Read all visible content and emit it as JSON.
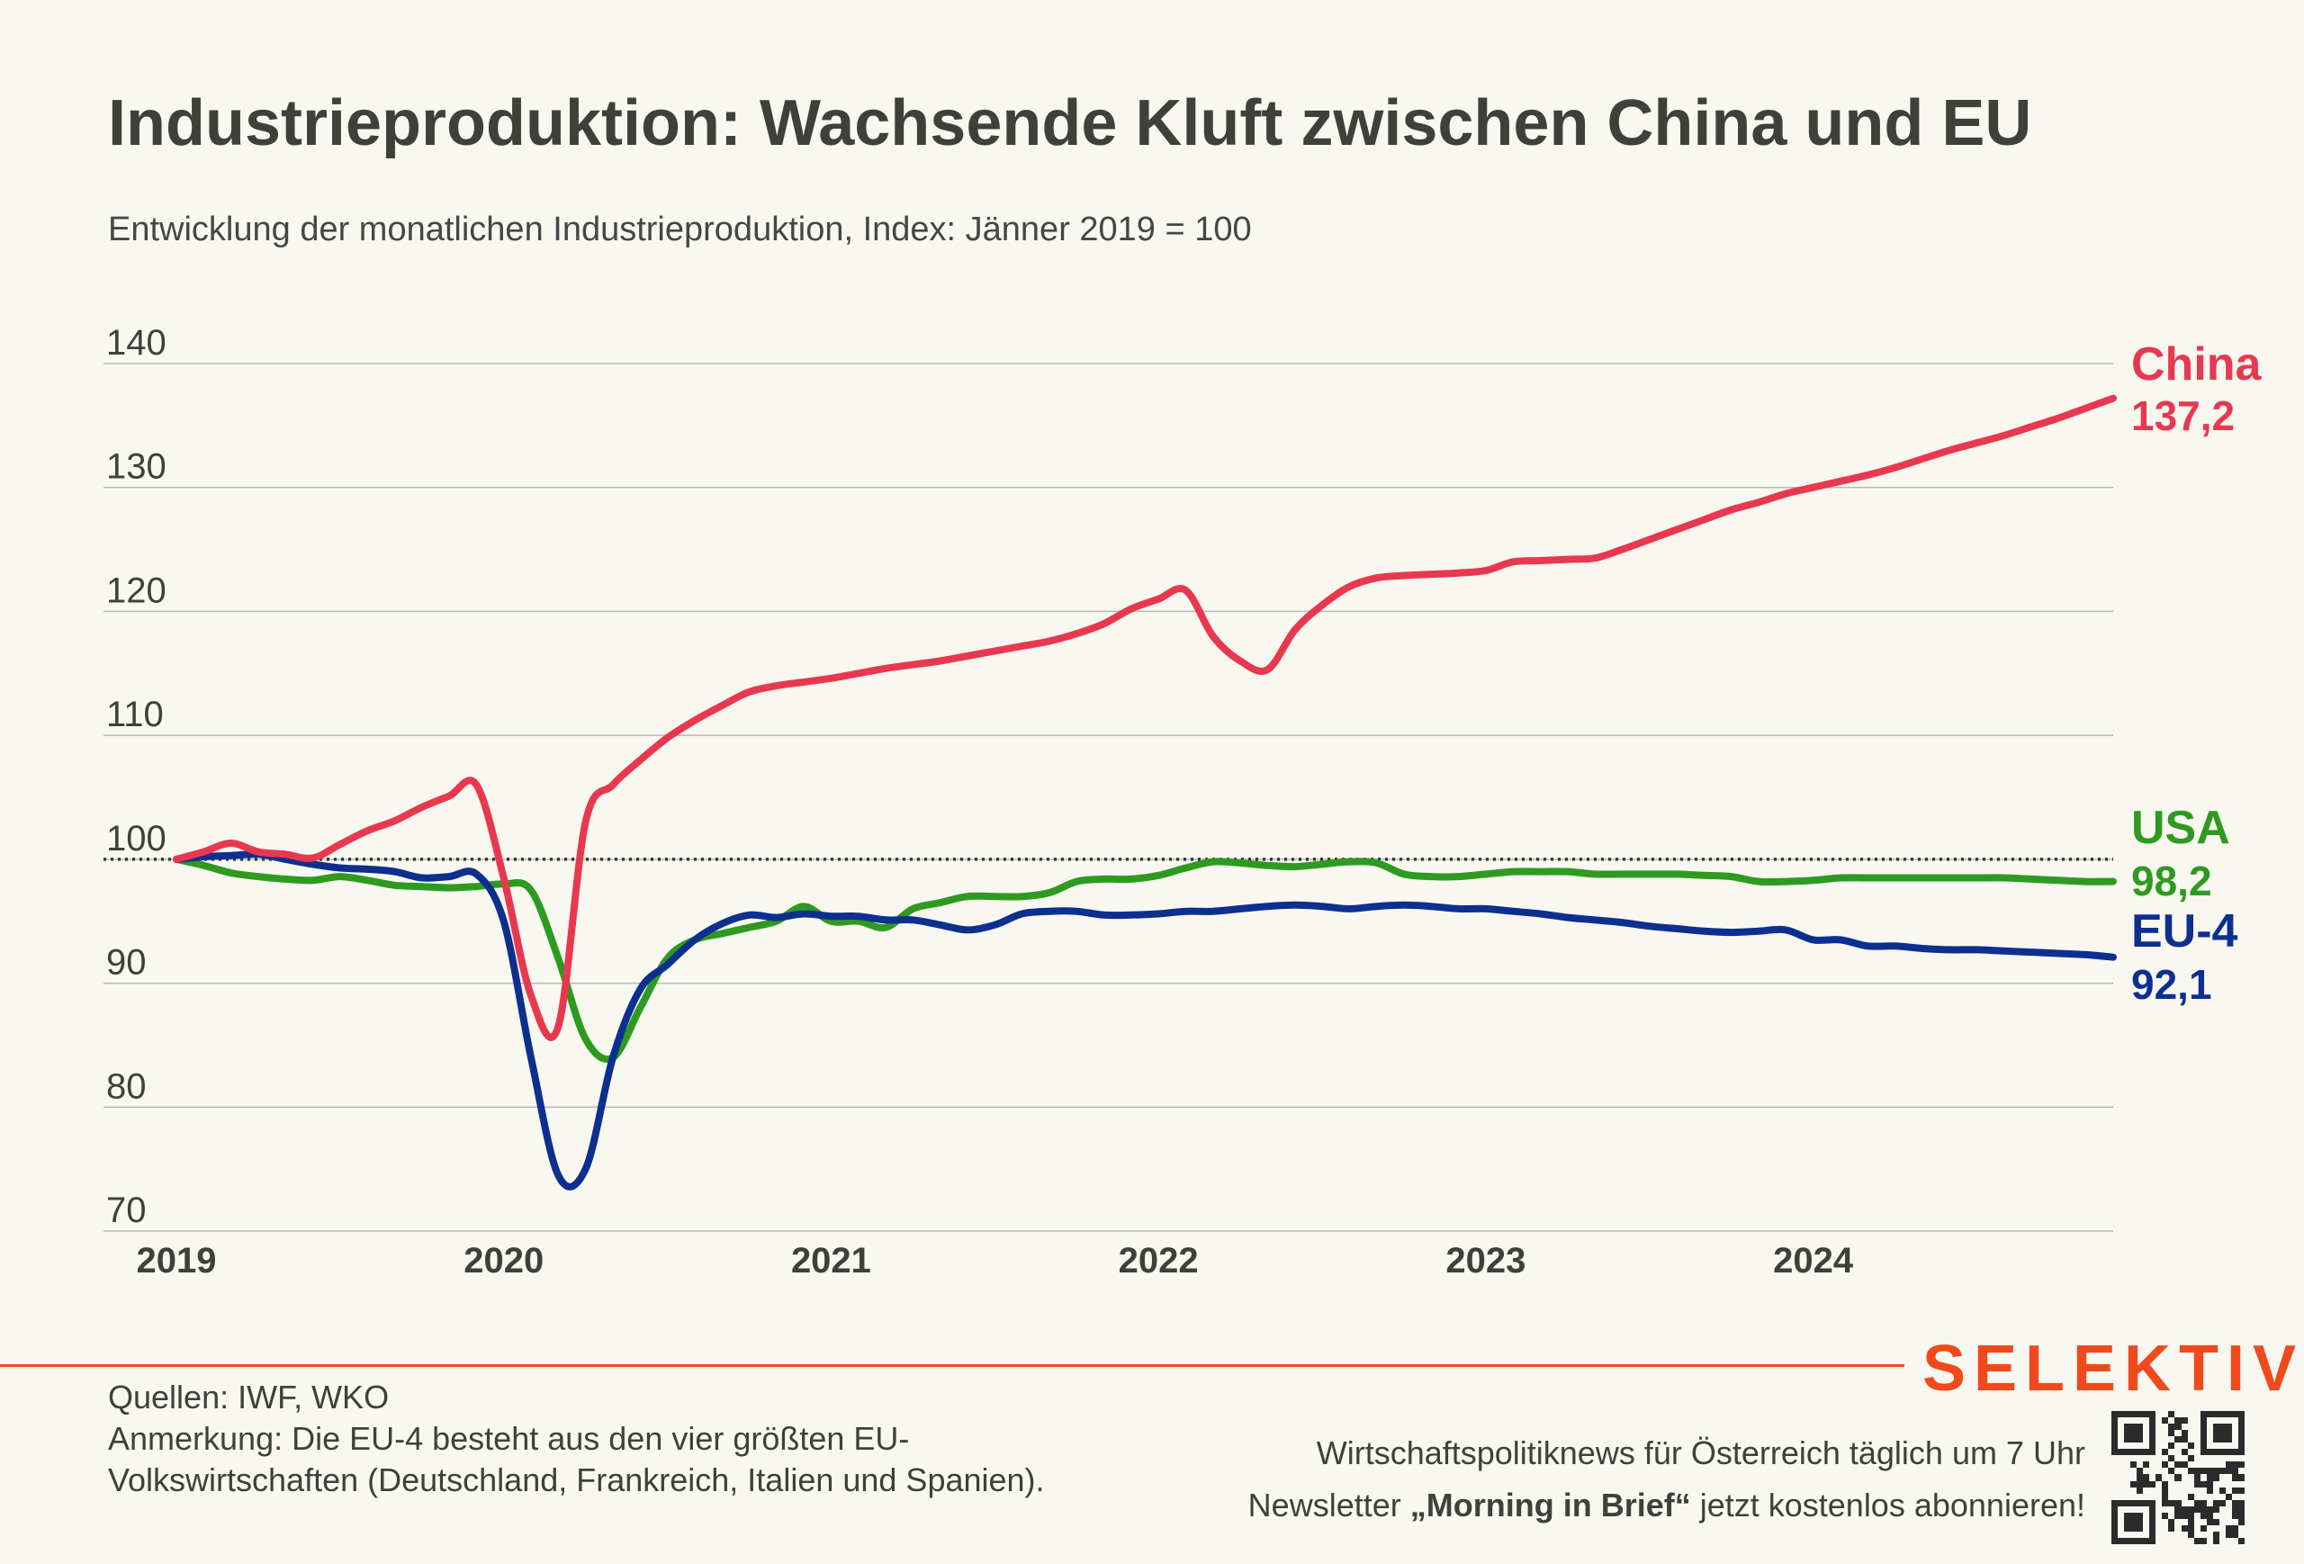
{
  "header": {
    "title": "Industrieproduktion: Wachsende Kluft zwischen China und EU",
    "subtitle": "Entwicklung der monatlichen Industrieproduktion, Index: Jänner 2019 = 100"
  },
  "footer": {
    "sources": "Quellen: IWF, WKO",
    "note_line1": "Anmerkung: Die EU-4 besteht aus den vier größten EU-",
    "note_line2": "Volkswirtschaften (Deutschland, Frankreich, Italien und Spanien).",
    "promo_line1": "Wirtschaftspolitiknews für Österreich täglich um 7 Uhr",
    "promo_line2_pre": "Newsletter ",
    "promo_line2_bold": "„Morning in Brief“",
    "promo_line2_post": " jetzt kostenlos abonnieren!",
    "logo": "SELEKTIV",
    "qr_icon": "qr-code-icon"
  },
  "colors": {
    "background": "#f8f7f0",
    "china": "#e8384f",
    "usa": "#2e9a1f",
    "eu4": "#0d2f8f",
    "accent": "#f04a1c",
    "grid": "#b8b8b8"
  },
  "chart_data": {
    "type": "line",
    "title": "Industrieproduktion: Wachsende Kluft zwischen China und EU",
    "subtitle": "Entwicklung der monatlichen Industrieproduktion, Index: Jänner 2019 = 100",
    "xlabel": "",
    "ylabel": "",
    "x_ticks": [
      "2019",
      "2020",
      "2021",
      "2022",
      "2023",
      "2024"
    ],
    "y_ticks": [
      70,
      80,
      90,
      100,
      110,
      120,
      130,
      140
    ],
    "ylim": [
      70,
      140
    ],
    "xlim": [
      "2019-01",
      "2024-12"
    ],
    "grid": true,
    "reference_line": 100,
    "series": [
      {
        "name": "China",
        "end_label": "137,2",
        "x": [
          "2019-01",
          "2019-02",
          "2019-03",
          "2019-04",
          "2019-05",
          "2019-06",
          "2019-07",
          "2019-08",
          "2019-09",
          "2019-10",
          "2019-11",
          "2019-12",
          "2020-01",
          "2020-02",
          "2020-03",
          "2020-04",
          "2020-05",
          "2020-06",
          "2020-07",
          "2020-08",
          "2020-09",
          "2020-10",
          "2020-11",
          "2020-12",
          "2021-01",
          "2021-02",
          "2021-03",
          "2021-04",
          "2021-05",
          "2021-06",
          "2021-07",
          "2021-08",
          "2021-09",
          "2021-10",
          "2021-11",
          "2021-12",
          "2022-01",
          "2022-02",
          "2022-03",
          "2022-04",
          "2022-05",
          "2022-06",
          "2022-07",
          "2022-08",
          "2022-09",
          "2022-10",
          "2022-11",
          "2022-12",
          "2023-01",
          "2023-02",
          "2023-03",
          "2023-04",
          "2023-05",
          "2023-06",
          "2023-07",
          "2023-08",
          "2023-09",
          "2023-10",
          "2023-11",
          "2023-12",
          "2024-01",
          "2024-02",
          "2024-03",
          "2024-04",
          "2024-05",
          "2024-06",
          "2024-07",
          "2024-08",
          "2024-09",
          "2024-10",
          "2024-11",
          "2024-12"
        ],
        "values": [
          100.0,
          100.6,
          101.3,
          100.6,
          100.4,
          100.1,
          101.2,
          102.3,
          103.1,
          104.2,
          105.1,
          106.0,
          98.5,
          89.0,
          86.5,
          103.0,
          106.0,
          108.0,
          109.8,
          111.2,
          112.4,
          113.5,
          114.0,
          114.3,
          114.6,
          115.0,
          115.4,
          115.7,
          116.0,
          116.4,
          116.8,
          117.2,
          117.6,
          118.2,
          119.0,
          120.2,
          121.0,
          121.7,
          118.0,
          116.0,
          115.3,
          118.5,
          120.5,
          122.0,
          122.7,
          122.9,
          123.0,
          123.1,
          123.3,
          124.0,
          124.1,
          124.2,
          124.3,
          125.0,
          125.8,
          126.6,
          127.4,
          128.2,
          128.8,
          129.5,
          130.0,
          130.5,
          131.0,
          131.6,
          132.3,
          133.0,
          133.6,
          134.2,
          134.9,
          135.6,
          136.4,
          137.2
        ]
      },
      {
        "name": "USA",
        "end_label": "98,2",
        "x": [
          "2019-01",
          "2019-02",
          "2019-03",
          "2019-04",
          "2019-05",
          "2019-06",
          "2019-07",
          "2019-08",
          "2019-09",
          "2019-10",
          "2019-11",
          "2019-12",
          "2020-01",
          "2020-02",
          "2020-03",
          "2020-04",
          "2020-05",
          "2020-06",
          "2020-07",
          "2020-08",
          "2020-09",
          "2020-10",
          "2020-11",
          "2020-12",
          "2021-01",
          "2021-02",
          "2021-03",
          "2021-04",
          "2021-05",
          "2021-06",
          "2021-07",
          "2021-08",
          "2021-09",
          "2021-10",
          "2021-11",
          "2021-12",
          "2022-01",
          "2022-02",
          "2022-03",
          "2022-04",
          "2022-05",
          "2022-06",
          "2022-07",
          "2022-08",
          "2022-09",
          "2022-10",
          "2022-11",
          "2022-12",
          "2023-01",
          "2023-02",
          "2023-03",
          "2023-04",
          "2023-05",
          "2023-06",
          "2023-07",
          "2023-08",
          "2023-09",
          "2023-10",
          "2023-11",
          "2023-12",
          "2024-01",
          "2024-02",
          "2024-03",
          "2024-04",
          "2024-05",
          "2024-06",
          "2024-07",
          "2024-08",
          "2024-09",
          "2024-10",
          "2024-11",
          "2024-12"
        ],
        "values": [
          100.0,
          99.5,
          98.9,
          98.6,
          98.4,
          98.3,
          98.6,
          98.3,
          97.9,
          97.8,
          97.7,
          97.8,
          98.0,
          97.5,
          92.0,
          85.5,
          84.0,
          88.0,
          92.0,
          93.5,
          94.0,
          94.5,
          95.0,
          96.2,
          95.0,
          95.0,
          94.5,
          96.0,
          96.5,
          97.0,
          97.0,
          97.0,
          97.3,
          98.2,
          98.4,
          98.4,
          98.7,
          99.3,
          99.8,
          99.7,
          99.5,
          99.4,
          99.6,
          99.8,
          99.7,
          98.8,
          98.6,
          98.6,
          98.8,
          99.0,
          99.0,
          99.0,
          98.8,
          98.8,
          98.8,
          98.8,
          98.7,
          98.6,
          98.2,
          98.2,
          98.3,
          98.5,
          98.5,
          98.5,
          98.5,
          98.5,
          98.5,
          98.5,
          98.4,
          98.3,
          98.2,
          98.2
        ]
      },
      {
        "name": "EU-4",
        "end_label": "92,1",
        "x": [
          "2019-01",
          "2019-02",
          "2019-03",
          "2019-04",
          "2019-05",
          "2019-06",
          "2019-07",
          "2019-08",
          "2019-09",
          "2019-10",
          "2019-11",
          "2019-12",
          "2020-01",
          "2020-02",
          "2020-03",
          "2020-04",
          "2020-05",
          "2020-06",
          "2020-07",
          "2020-08",
          "2020-09",
          "2020-10",
          "2020-11",
          "2020-12",
          "2021-01",
          "2021-02",
          "2021-03",
          "2021-04",
          "2021-05",
          "2021-06",
          "2021-07",
          "2021-08",
          "2021-09",
          "2021-10",
          "2021-11",
          "2021-12",
          "2022-01",
          "2022-02",
          "2022-03",
          "2022-04",
          "2022-05",
          "2022-06",
          "2022-07",
          "2022-08",
          "2022-09",
          "2022-10",
          "2022-11",
          "2022-12",
          "2023-01",
          "2023-02",
          "2023-03",
          "2023-04",
          "2023-05",
          "2023-06",
          "2023-07",
          "2023-08",
          "2023-09",
          "2023-10",
          "2023-11",
          "2023-12",
          "2024-01",
          "2024-02",
          "2024-03",
          "2024-04",
          "2024-05",
          "2024-06",
          "2024-07",
          "2024-08",
          "2024-09",
          "2024-10",
          "2024-11",
          "2024-12"
        ],
        "values": [
          100.0,
          100.2,
          100.3,
          100.4,
          100.0,
          99.6,
          99.3,
          99.2,
          99.0,
          98.5,
          98.6,
          98.8,
          95.0,
          84.0,
          74.5,
          75.0,
          84.0,
          89.5,
          91.5,
          93.5,
          94.8,
          95.5,
          95.3,
          95.6,
          95.4,
          95.4,
          95.1,
          95.1,
          94.7,
          94.3,
          94.7,
          95.6,
          95.8,
          95.8,
          95.5,
          95.5,
          95.6,
          95.8,
          95.8,
          96.0,
          96.2,
          96.3,
          96.2,
          96.0,
          96.2,
          96.3,
          96.2,
          96.0,
          96.0,
          95.8,
          95.6,
          95.3,
          95.1,
          94.9,
          94.6,
          94.4,
          94.2,
          94.1,
          94.2,
          94.3,
          93.5,
          93.5,
          93.0,
          93.0,
          92.8,
          92.7,
          92.7,
          92.6,
          92.5,
          92.4,
          92.3,
          92.1
        ]
      }
    ]
  }
}
